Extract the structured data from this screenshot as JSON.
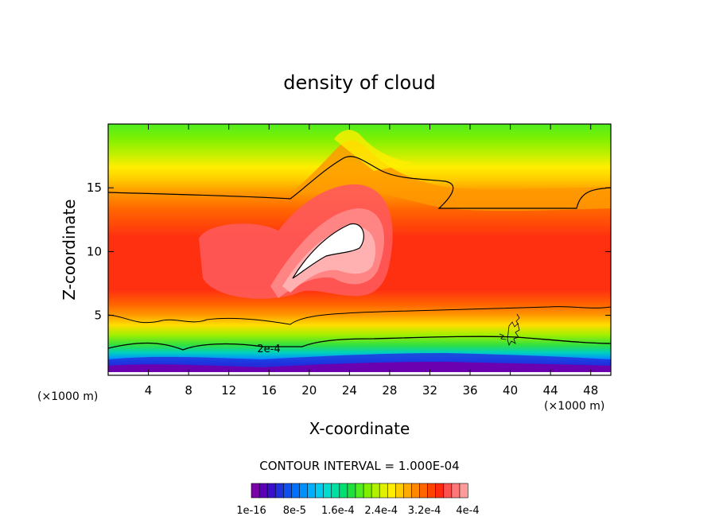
{
  "chart_data": {
    "type": "heatmap",
    "title": "density of cloud",
    "xlabel": "X-coordinate",
    "ylabel": "Z-coordinate",
    "x_unit_left": "(×1000 m)",
    "x_unit_right": "(×1000 m)",
    "xlim": [
      0,
      50
    ],
    "ylim": [
      0.3,
      20
    ],
    "x_ticks": [
      4,
      8,
      12,
      16,
      20,
      24,
      28,
      32,
      36,
      40,
      44,
      48
    ],
    "y_ticks": [
      5,
      10,
      15
    ],
    "contour_interval_text": "CONTOUR INTERVAL = 1.000E-04",
    "contour_label": "2e-4",
    "colorbar": {
      "tick_labels": [
        "1e-16",
        "8e-5",
        "1.6e-4",
        "2.4e-4",
        "3.2e-4",
        "4e-4"
      ],
      "colors": [
        "#7a00a8",
        "#5a00b8",
        "#3a10cc",
        "#2030dd",
        "#1050ee",
        "#0070ff",
        "#0090ff",
        "#00b0ff",
        "#00ccee",
        "#00ddcc",
        "#00e0a0",
        "#00e070",
        "#20e040",
        "#50ee20",
        "#80f000",
        "#b0f000",
        "#e0f000",
        "#ffee00",
        "#ffcc00",
        "#ffaa00",
        "#ff8800",
        "#ff6600",
        "#ff4400",
        "#ff2a10",
        "#ff5050",
        "#ff7878",
        "#ff9a9a"
      ]
    }
  }
}
